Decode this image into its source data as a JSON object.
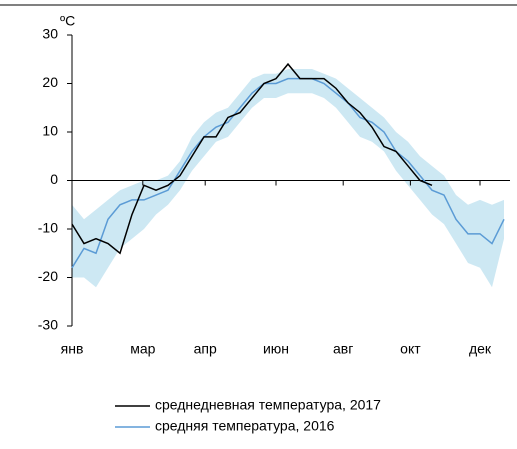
{
  "chart_data": {
    "type": "line",
    "y_unit_label": "ºC",
    "x": [
      0,
      10,
      20,
      30,
      40,
      50,
      60,
      70,
      80,
      90,
      100,
      110,
      120,
      130,
      140,
      150,
      160,
      170,
      180,
      190,
      200,
      210,
      220,
      230,
      240,
      250,
      260,
      270,
      280,
      290,
      300,
      310,
      320,
      330,
      340,
      350,
      360
    ],
    "xlim": [
      0,
      365
    ],
    "xticks": [
      {
        "value": 0,
        "label": "янв"
      },
      {
        "value": 59,
        "label": "мар"
      },
      {
        "value": 111,
        "label": "апр"
      },
      {
        "value": 170,
        "label": "июн"
      },
      {
        "value": 226,
        "label": "авг"
      },
      {
        "value": 282,
        "label": "окт"
      },
      {
        "value": 340,
        "label": "дек"
      }
    ],
    "ylim": [
      -30,
      30
    ],
    "yticks": [
      -30,
      -20,
      -10,
      0,
      10,
      20,
      30
    ],
    "band": {
      "color": "#cde8f3",
      "upper": [
        -5,
        -8,
        -6,
        -4,
        -2,
        -1,
        0,
        0,
        1,
        4,
        9,
        12,
        14,
        15,
        18,
        21,
        22,
        22,
        23,
        23,
        23,
        22,
        21,
        19,
        17,
        15,
        13,
        10,
        8,
        5,
        3,
        1,
        -3,
        -5,
        -4,
        -5,
        -4
      ],
      "lower": [
        -20,
        -20,
        -22,
        -18,
        -14,
        -12,
        -10,
        -7,
        -5,
        -2,
        2,
        5,
        8,
        9,
        12,
        15,
        17,
        17,
        18,
        18,
        18,
        17,
        15,
        12,
        9,
        8,
        6,
        2,
        -1,
        -4,
        -7,
        -9,
        -13,
        -17,
        -18,
        -22,
        -12
      ]
    },
    "series": [
      {
        "name": "среднедневная температура, 2017",
        "color": "#000000",
        "values": [
          -9,
          -13,
          -12,
          -13,
          -15,
          -7,
          -1,
          -2,
          -1,
          1,
          5,
          9,
          9,
          13,
          14,
          17,
          20,
          21,
          24,
          21,
          21,
          21,
          19,
          16,
          14,
          11,
          7,
          6,
          3,
          0,
          -1,
          null,
          null,
          null,
          null,
          null,
          null
        ]
      },
      {
        "name": "средняя температура, 2016",
        "color": "#5b9bd5",
        "values": [
          -18,
          -14,
          -15,
          -8,
          -5,
          -4,
          -4,
          -3,
          -2,
          2,
          6,
          9,
          11,
          12,
          15,
          18,
          20,
          20,
          21,
          21,
          21,
          20,
          18,
          16,
          13,
          12,
          10,
          6,
          4,
          1,
          -2,
          -3,
          -8,
          -11,
          -11,
          -13,
          -8
        ]
      }
    ]
  }
}
